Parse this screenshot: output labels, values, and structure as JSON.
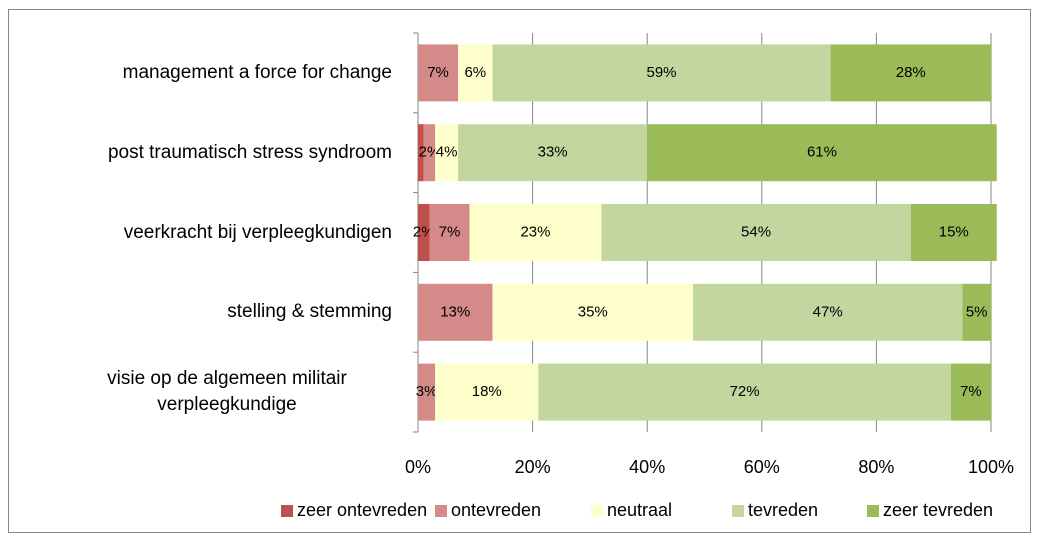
{
  "chart_data": {
    "type": "stacked_barh",
    "categories": [
      "management a force for change",
      "post traumatisch stress syndroom",
      "veerkracht bij verpleegkundigen",
      "stelling & stemming",
      "visie op de algemeen militair verpleegkundige"
    ],
    "series": [
      {
        "name": "zeer ontevreden",
        "color": "#c0504d",
        "values": [
          0,
          1,
          2,
          0,
          0
        ],
        "value_labels": [
          null,
          null,
          "2%",
          null,
          null
        ]
      },
      {
        "name": "ontevreden",
        "color": "#d48a88",
        "values": [
          7,
          2,
          7,
          13,
          3
        ],
        "value_labels": [
          "7%",
          "2%",
          "7%",
          "13%",
          "3%"
        ]
      },
      {
        "name": "neutraal",
        "color": "#ffffcc",
        "values": [
          6,
          4,
          23,
          35,
          18
        ],
        "value_labels": [
          "6%",
          "4%",
          "23%",
          "35%",
          "18%"
        ]
      },
      {
        "name": "tevreden",
        "color": "#c4d6a0",
        "values": [
          59,
          33,
          54,
          47,
          72
        ],
        "value_labels": [
          "59%",
          "33%",
          "54%",
          "47%",
          "72%"
        ]
      },
      {
        "name": "zeer tevreden",
        "color": "#9bbb59",
        "values": [
          28,
          61,
          15,
          5,
          7
        ],
        "value_labels": [
          "28%",
          "61%",
          "15%",
          "5%",
          "7%"
        ]
      }
    ],
    "xlim": [
      0,
      100
    ],
    "xticks": [
      {
        "value": 0,
        "label": "0%"
      },
      {
        "value": 20,
        "label": "20%"
      },
      {
        "value": 40,
        "label": "40%"
      },
      {
        "value": 60,
        "label": "60%"
      },
      {
        "value": 80,
        "label": "80%"
      },
      {
        "value": 100,
        "label": "100%"
      }
    ],
    "grid": true,
    "legend": "bottom"
  }
}
